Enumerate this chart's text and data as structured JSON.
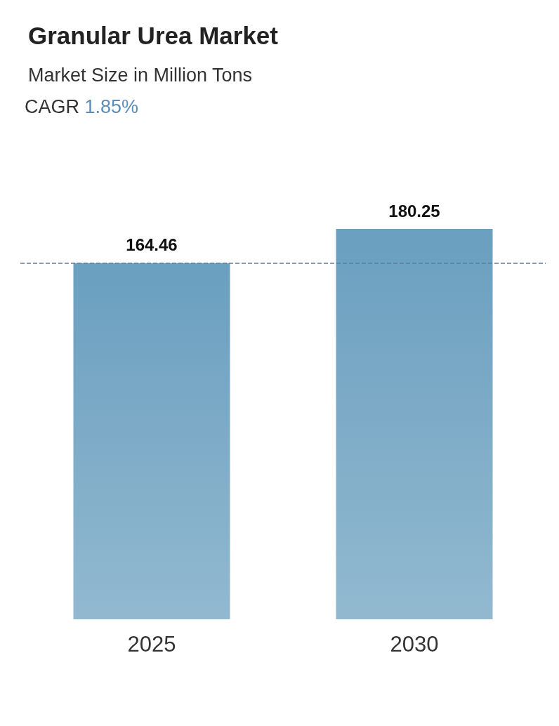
{
  "chart_data": {
    "type": "bar",
    "title": "Granular Urea Market",
    "subtitle": "Market Size in Million Tons",
    "annotations": [
      "CAGR 1.85%"
    ],
    "categories": [
      "2025",
      "2030"
    ],
    "values": [
      164.46,
      180.25
    ],
    "color": "#6a9fbf",
    "data_labels": true,
    "ref_lines": [
      {
        "axis": "y",
        "value": 164.46,
        "color": "#5a7f9c",
        "line_style": "dashed"
      }
    ]
  }
}
